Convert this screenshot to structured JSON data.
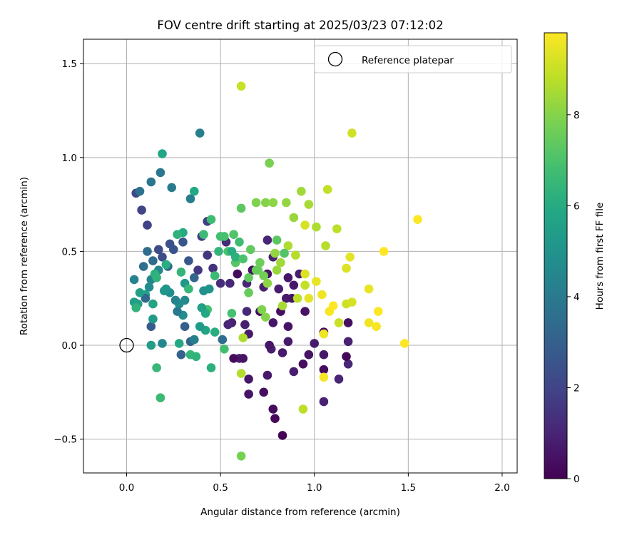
{
  "chart_data": {
    "type": "scatter",
    "title": "FOV centre drift starting at 2025/03/23 07:12:02",
    "xlabel": "Angular distance from reference (arcmin)",
    "ylabel": "Rotation from reference (arcmin)",
    "xlim": [
      -0.23,
      2.08
    ],
    "ylim": [
      -0.68,
      1.63
    ],
    "xticks": [
      0.0,
      0.5,
      1.0,
      1.5,
      2.0
    ],
    "xtick_labels": [
      "0.0",
      "0.5",
      "1.0",
      "1.5",
      "2.0"
    ],
    "yticks": [
      -0.5,
      0.0,
      0.5,
      1.0,
      1.5
    ],
    "ytick_labels": [
      "−0.5",
      "0.0",
      "0.5",
      "1.0",
      "1.5"
    ],
    "grid": true,
    "legend": {
      "position": "top-right",
      "entries": [
        {
          "label": "Reference platepar",
          "marker": "open-circle"
        }
      ]
    },
    "reference_point": {
      "x": 0.0,
      "y": 0.0
    },
    "colorbar": {
      "label": "Hours from first FF file",
      "range": [
        0,
        9.8
      ],
      "ticks": [
        0,
        2,
        4,
        6,
        8
      ],
      "tick_labels": [
        "0",
        "2",
        "4",
        "6",
        "8"
      ],
      "colormap": "viridis"
    },
    "series": [
      {
        "columns": [
          "x",
          "y",
          "hours"
        ],
        "points": [
          [
            0.83,
            -0.48,
            0.1
          ],
          [
            0.79,
            -0.39,
            0.2
          ],
          [
            0.78,
            -0.34,
            0.3
          ],
          [
            0.73,
            -0.25,
            0.4
          ],
          [
            0.65,
            -0.26,
            0.5
          ],
          [
            0.65,
            -0.18,
            0.6
          ],
          [
            0.75,
            -0.16,
            0.7
          ],
          [
            0.89,
            -0.14,
            0.8
          ],
          [
            1.05,
            -0.3,
            0.9
          ],
          [
            1.13,
            -0.18,
            1.0
          ],
          [
            1.18,
            -0.1,
            1.1
          ],
          [
            1.17,
            -0.06,
            0.2
          ],
          [
            1.05,
            -0.13,
            0.3
          ],
          [
            0.94,
            -0.1,
            0.4
          ],
          [
            0.97,
            -0.05,
            0.5
          ],
          [
            1.05,
            -0.05,
            0.6
          ],
          [
            0.83,
            -0.04,
            0.7
          ],
          [
            0.77,
            -0.02,
            0.8
          ],
          [
            0.6,
            -0.07,
            0.9
          ],
          [
            0.57,
            -0.07,
            0.3
          ],
          [
            0.62,
            -0.07,
            0.5
          ],
          [
            0.76,
            0.0,
            0.6
          ],
          [
            0.86,
            0.02,
            0.7
          ],
          [
            1.0,
            0.01,
            0.8
          ],
          [
            1.18,
            0.02,
            0.9
          ],
          [
            1.05,
            0.07,
            0.2
          ],
          [
            1.18,
            0.12,
            0.4
          ],
          [
            0.86,
            0.1,
            0.5
          ],
          [
            0.78,
            0.12,
            0.6
          ],
          [
            0.65,
            0.06,
            0.7
          ],
          [
            0.63,
            0.11,
            0.8
          ],
          [
            0.56,
            0.12,
            0.9
          ],
          [
            0.54,
            0.11,
            1.0
          ],
          [
            0.64,
            0.18,
            1.1
          ],
          [
            0.71,
            0.18,
            0.3
          ],
          [
            0.82,
            0.18,
            0.4
          ],
          [
            0.95,
            0.18,
            0.5
          ],
          [
            0.88,
            0.25,
            0.6
          ],
          [
            0.85,
            0.25,
            0.7
          ],
          [
            0.81,
            0.3,
            0.8
          ],
          [
            0.73,
            0.31,
            0.9
          ],
          [
            0.64,
            0.33,
            1.0
          ],
          [
            0.55,
            0.33,
            1.1
          ],
          [
            0.59,
            0.38,
            0.3
          ],
          [
            0.67,
            0.4,
            0.4
          ],
          [
            0.75,
            0.38,
            0.5
          ],
          [
            0.86,
            0.36,
            0.6
          ],
          [
            0.89,
            0.32,
            0.7
          ],
          [
            0.92,
            0.38,
            0.8
          ],
          [
            0.78,
            0.47,
            0.9
          ],
          [
            0.75,
            0.56,
            1.0
          ],
          [
            0.53,
            0.55,
            1.2
          ],
          [
            0.5,
            0.33,
            1.3
          ],
          [
            0.46,
            0.41,
            1.4
          ],
          [
            0.43,
            0.48,
            1.5
          ],
          [
            0.38,
            0.4,
            1.6
          ],
          [
            0.4,
            0.58,
            1.7
          ],
          [
            0.43,
            0.66,
            1.8
          ],
          [
            0.11,
            0.64,
            1.9
          ],
          [
            0.08,
            0.72,
            2.0
          ],
          [
            0.05,
            0.81,
            2.1
          ],
          [
            0.17,
            0.51,
            2.2
          ],
          [
            0.19,
            0.47,
            2.3
          ],
          [
            0.23,
            0.54,
            2.4
          ],
          [
            0.25,
            0.51,
            2.5
          ],
          [
            0.3,
            0.55,
            2.6
          ],
          [
            0.33,
            0.45,
            2.7
          ],
          [
            0.13,
            0.1,
            2.8
          ],
          [
            0.31,
            0.1,
            2.9
          ],
          [
            0.29,
            -0.05,
            3.0
          ],
          [
            0.34,
            0.02,
            3.1
          ],
          [
            0.36,
            0.36,
            3.2
          ],
          [
            0.22,
            0.42,
            3.3
          ],
          [
            0.14,
            0.45,
            3.4
          ],
          [
            0.11,
            0.5,
            3.5
          ],
          [
            0.09,
            0.42,
            3.6
          ],
          [
            0.07,
            0.82,
            3.7
          ],
          [
            0.13,
            0.87,
            3.8
          ],
          [
            0.18,
            0.92,
            3.9
          ],
          [
            0.24,
            0.84,
            4.0
          ],
          [
            0.34,
            0.78,
            4.1
          ],
          [
            0.39,
            1.13,
            4.2
          ],
          [
            0.04,
            0.35,
            4.3
          ],
          [
            0.13,
            0.35,
            4.4
          ],
          [
            0.17,
            0.4,
            4.5
          ],
          [
            0.31,
            0.24,
            4.6
          ],
          [
            0.3,
            0.16,
            4.7
          ],
          [
            0.28,
            0.22,
            4.8
          ],
          [
            0.41,
            0.29,
            4.9
          ],
          [
            0.44,
            0.3,
            5.0
          ],
          [
            0.31,
            0.33,
            5.1
          ],
          [
            0.2,
            0.29,
            5.2
          ],
          [
            0.14,
            0.14,
            5.3
          ],
          [
            0.04,
            0.23,
            5.4
          ],
          [
            0.06,
            0.22,
            5.5
          ],
          [
            0.1,
            0.27,
            5.6
          ],
          [
            0.14,
            0.22,
            5.7
          ],
          [
            0.19,
            1.02,
            5.8
          ],
          [
            0.36,
            0.82,
            5.9
          ],
          [
            0.3,
            0.6,
            6.0
          ],
          [
            0.21,
            0.43,
            6.1
          ],
          [
            0.15,
            0.38,
            6.2
          ],
          [
            0.27,
            0.59,
            6.3
          ],
          [
            0.29,
            0.39,
            6.4
          ],
          [
            0.33,
            0.3,
            6.5
          ],
          [
            0.41,
            0.59,
            6.6
          ],
          [
            0.45,
            0.67,
            6.7
          ],
          [
            0.5,
            0.58,
            6.8
          ],
          [
            0.52,
            0.58,
            6.9
          ],
          [
            0.54,
            0.5,
            7.0
          ],
          [
            0.57,
            0.59,
            7.1
          ],
          [
            0.58,
            0.44,
            7.2
          ],
          [
            0.61,
            0.73,
            7.3
          ],
          [
            0.65,
            0.36,
            7.4
          ],
          [
            0.65,
            0.28,
            7.5
          ],
          [
            0.7,
            0.4,
            7.6
          ],
          [
            0.73,
            0.37,
            7.7
          ],
          [
            0.76,
            0.97,
            7.8
          ],
          [
            0.69,
            0.76,
            7.9
          ],
          [
            0.74,
            0.76,
            8.0
          ],
          [
            0.78,
            0.76,
            8.1
          ],
          [
            0.85,
            0.76,
            8.2
          ],
          [
            0.89,
            0.68,
            8.3
          ],
          [
            0.93,
            0.82,
            8.4
          ],
          [
            0.97,
            0.75,
            8.5
          ],
          [
            1.01,
            0.63,
            8.6
          ],
          [
            1.06,
            0.53,
            8.7
          ],
          [
            1.12,
            0.62,
            8.8
          ],
          [
            1.07,
            0.83,
            8.9
          ],
          [
            0.61,
            1.38,
            9.0
          ],
          [
            1.2,
            1.13,
            9.1
          ],
          [
            0.95,
            0.64,
            9.2
          ],
          [
            0.95,
            0.38,
            9.3
          ],
          [
            0.97,
            0.25,
            9.4
          ],
          [
            1.01,
            0.34,
            9.5
          ],
          [
            1.04,
            0.27,
            9.6
          ],
          [
            1.08,
            0.18,
            9.7
          ],
          [
            1.1,
            0.21,
            9.8
          ],
          [
            1.13,
            0.12,
            9.0
          ],
          [
            1.17,
            0.22,
            9.1
          ],
          [
            1.2,
            0.23,
            9.2
          ],
          [
            1.17,
            0.41,
            9.3
          ],
          [
            1.19,
            0.47,
            9.4
          ],
          [
            1.29,
            0.3,
            9.5
          ],
          [
            1.29,
            0.12,
            9.6
          ],
          [
            1.33,
            0.1,
            9.7
          ],
          [
            1.34,
            0.18,
            9.8
          ],
          [
            1.37,
            0.5,
            9.8
          ],
          [
            1.48,
            0.01,
            9.8
          ],
          [
            1.55,
            0.67,
            9.8
          ],
          [
            1.05,
            -0.17,
            9.7
          ],
          [
            1.05,
            0.06,
            9.6
          ],
          [
            0.94,
            -0.34,
            8.8
          ],
          [
            0.61,
            -0.15,
            8.7
          ],
          [
            0.62,
            0.04,
            8.6
          ],
          [
            0.61,
            -0.59,
            7.8
          ],
          [
            0.18,
            -0.28,
            6.6
          ],
          [
            0.16,
            -0.12,
            6.5
          ],
          [
            0.13,
            0.0,
            5.4
          ],
          [
            0.19,
            0.01,
            4.5
          ],
          [
            0.28,
            0.01,
            5.9
          ],
          [
            0.34,
            -0.05,
            6.4
          ],
          [
            0.37,
            -0.06,
            6.3
          ],
          [
            0.45,
            -0.12,
            6.2
          ],
          [
            0.42,
            0.08,
            5.7
          ],
          [
            0.47,
            0.07,
            6.1
          ],
          [
            0.51,
            0.03,
            3.5
          ],
          [
            0.52,
            -0.02,
            6.8
          ],
          [
            0.56,
            0.17,
            6.9
          ],
          [
            0.56,
            0.5,
            6.0
          ],
          [
            0.58,
            0.47,
            6.2
          ],
          [
            0.62,
            0.46,
            7.0
          ],
          [
            0.69,
            0.4,
            7.5
          ],
          [
            0.71,
            0.44,
            7.6
          ],
          [
            0.72,
            0.19,
            7.9
          ],
          [
            0.74,
            0.15,
            8.0
          ],
          [
            0.75,
            0.33,
            8.1
          ],
          [
            0.79,
            0.49,
            8.2
          ],
          [
            0.8,
            0.4,
            8.3
          ],
          [
            0.82,
            0.44,
            8.4
          ],
          [
            0.83,
            0.21,
            8.5
          ],
          [
            0.86,
            0.53,
            8.6
          ],
          [
            0.9,
            0.48,
            8.7
          ],
          [
            0.91,
            0.25,
            8.8
          ],
          [
            0.95,
            0.32,
            8.9
          ],
          [
            0.84,
            0.49,
            7.1
          ],
          [
            0.8,
            0.56,
            7.3
          ],
          [
            0.66,
            0.51,
            7.4
          ],
          [
            0.6,
            0.55,
            6.7
          ],
          [
            0.49,
            0.5,
            6.4
          ],
          [
            0.47,
            0.37,
            6.6
          ],
          [
            0.43,
            0.19,
            6.9
          ],
          [
            0.42,
            0.17,
            5.9
          ],
          [
            0.4,
            0.2,
            5.6
          ],
          [
            0.39,
            0.1,
            5.3
          ],
          [
            0.36,
            0.03,
            4.2
          ],
          [
            0.27,
            0.18,
            3.9
          ],
          [
            0.26,
            0.24,
            4.3
          ],
          [
            0.23,
            0.28,
            4.8
          ],
          [
            0.21,
            0.3,
            5.1
          ],
          [
            0.16,
            0.36,
            6.3
          ],
          [
            0.12,
            0.31,
            4.7
          ],
          [
            0.1,
            0.25,
            3.2
          ],
          [
            0.07,
            0.28,
            5.5
          ],
          [
            0.05,
            0.2,
            6.3
          ]
        ]
      }
    ]
  }
}
